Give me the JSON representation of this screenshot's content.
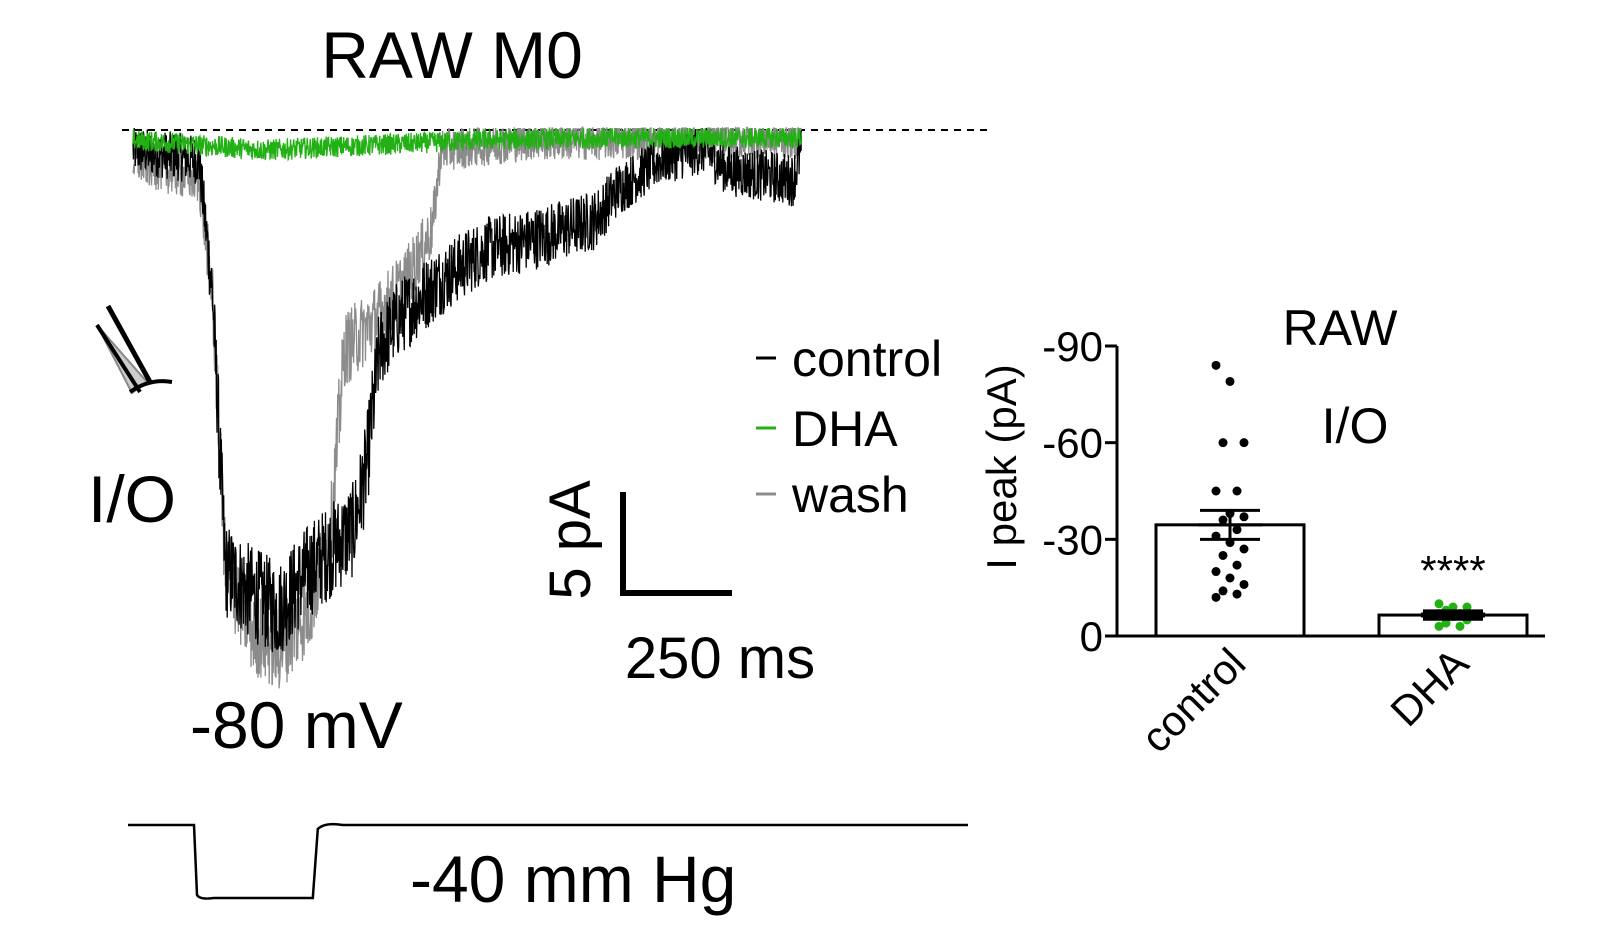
{
  "figure": {
    "title": "RAW M0",
    "config_label": "I/O",
    "voltage_label": "-80 mV",
    "pressure_label": "-40 mm Hg",
    "scalebar": {
      "y_label": "5 pA",
      "x_label": "250 ms"
    }
  },
  "legend": [
    {
      "label": "control",
      "color": "#000000"
    },
    {
      "label": "DHA",
      "color": "#22b014"
    },
    {
      "label": "wash",
      "color": "#8c8c8c"
    }
  ],
  "icons": {
    "pipette": "patch-pipette-icon"
  },
  "chart_data": [
    {
      "type": "line",
      "description_kind": "current traces",
      "series": [
        {
          "name": "control",
          "color": "#000000",
          "points_ms_pA": [
            [
              0,
              -1
            ],
            [
              150,
              -1.5
            ],
            [
              180,
              -8
            ],
            [
              210,
              -22
            ],
            [
              260,
              -23
            ],
            [
              330,
              -24
            ],
            [
              400,
              -22
            ],
            [
              500,
              -20
            ],
            [
              530,
              -17
            ],
            [
              560,
              -11
            ],
            [
              600,
              -9.5
            ],
            [
              700,
              -7.5
            ],
            [
              800,
              -6
            ],
            [
              900,
              -5.5
            ],
            [
              1050,
              -4.5
            ],
            [
              1100,
              -3
            ],
            [
              1200,
              -1.5
            ],
            [
              1300,
              -1
            ],
            [
              1350,
              -2
            ],
            [
              1500,
              -2.5
            ],
            [
              1520,
              -1
            ]
          ]
        },
        {
          "name": "DHA",
          "color": "#22b014",
          "points_ms_pA": [
            [
              0,
              -0.5
            ],
            [
              300,
              -1
            ],
            [
              500,
              -0.8
            ],
            [
              800,
              -0.5
            ],
            [
              1100,
              -0.4
            ],
            [
              1520,
              -0.4
            ]
          ]
        },
        {
          "name": "wash",
          "color": "#8c8c8c",
          "points_ms_pA": [
            [
              0,
              -1.5
            ],
            [
              150,
              -2.5
            ],
            [
              180,
              -8
            ],
            [
              210,
              -22
            ],
            [
              270,
              -25
            ],
            [
              330,
              -26
            ],
            [
              400,
              -24
            ],
            [
              450,
              -20
            ],
            [
              480,
              -11
            ],
            [
              550,
              -9.5
            ],
            [
              620,
              -7.5
            ],
            [
              680,
              -5
            ],
            [
              700,
              -1
            ],
            [
              900,
              -0.5
            ],
            [
              1520,
              -0.4
            ]
          ]
        }
      ],
      "stimulus": {
        "baseline_mmHg": 0,
        "step_mmHg": -40,
        "step_start_ms": 150,
        "step_end_ms": 420
      }
    },
    {
      "type": "bar",
      "title": "RAW",
      "subtitle": "I/O",
      "ylabel": "I peak (pA)",
      "yticks": [
        "0",
        "-30",
        "-60",
        "-90"
      ],
      "ylim": [
        0,
        -90
      ],
      "categories": [
        "control",
        "DHA"
      ],
      "values": [
        -34.5,
        -6.5
      ],
      "sem": [
        4.5,
        1.0
      ],
      "significance": [
        "",
        "****"
      ],
      "point_colors": [
        "#000000",
        "#22b014"
      ],
      "points": [
        [
          -84,
          -79,
          -60,
          -60,
          -45,
          -45,
          -38,
          -37,
          -36,
          -33,
          -31,
          -29,
          -27,
          -25,
          -22,
          -20,
          -18,
          -16,
          -14,
          -13,
          -12
        ],
        [
          -10,
          -9,
          -9,
          -8,
          -7,
          -7,
          -6,
          -5,
          -4,
          -3,
          -3
        ]
      ]
    }
  ]
}
